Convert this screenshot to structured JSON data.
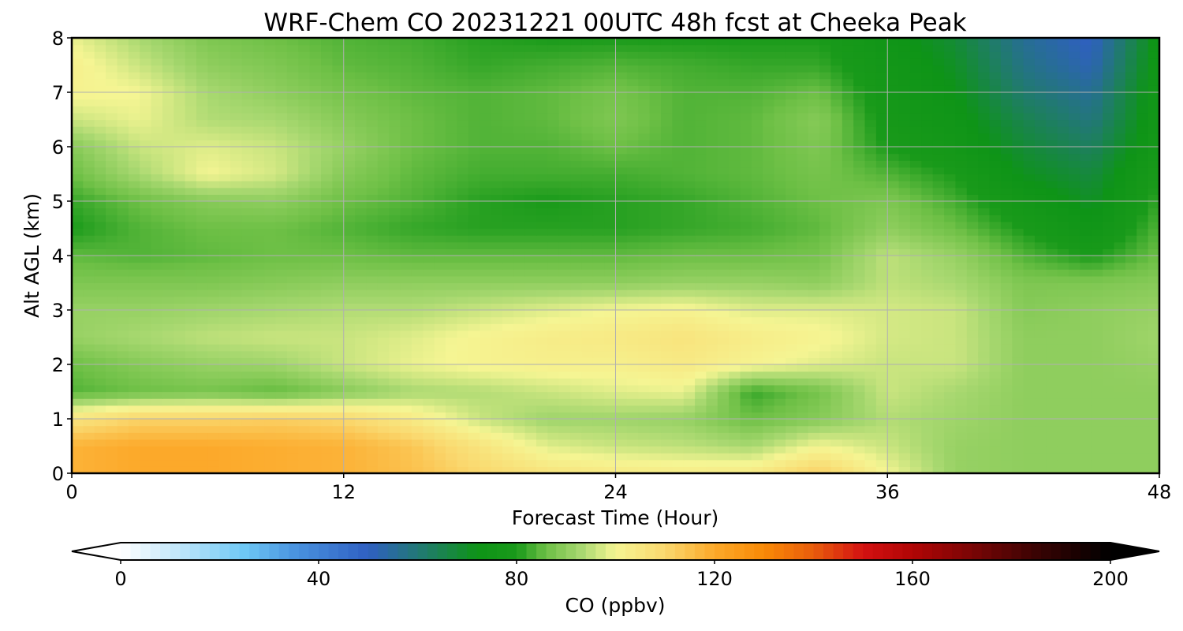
{
  "chart_data": {
    "type": "heatmap",
    "title": "WRF-Chem CO  20231221 00UTC 48h fcst at Cheeka Peak",
    "xlabel": "Forecast Time (Hour)",
    "ylabel": "Alt AGL (km)",
    "xlim": [
      0,
      48
    ],
    "ylim": [
      0,
      8
    ],
    "xticks": [
      0,
      12,
      24,
      36,
      48
    ],
    "yticks": [
      0,
      1,
      2,
      3,
      4,
      5,
      6,
      7,
      8
    ],
    "grid": true,
    "x": [
      0,
      3,
      6,
      9,
      12,
      15,
      18,
      21,
      24,
      27,
      30,
      33,
      36,
      39,
      42,
      45,
      48
    ],
    "y": [
      0,
      0.5,
      1,
      1.5,
      2,
      2.5,
      3,
      3.5,
      4,
      4.5,
      5,
      5.5,
      6,
      6.5,
      7,
      7.5,
      8
    ],
    "z": [
      [
        118,
        120,
        120,
        119,
        118,
        115,
        110,
        106,
        104,
        103,
        104,
        112,
        100,
        91,
        90,
        90,
        90
      ],
      [
        118,
        120,
        120,
        119,
        118,
        114,
        106,
        98,
        96,
        95,
        93,
        100,
        96,
        91,
        90,
        90,
        90
      ],
      [
        106,
        111,
        111,
        112,
        110,
        104,
        96,
        92,
        92,
        91,
        86,
        89,
        94,
        92,
        90,
        90,
        90
      ],
      [
        84,
        86,
        87,
        85,
        89,
        93,
        94,
        96,
        98,
        99,
        82,
        87,
        96,
        93,
        90,
        90,
        90
      ],
      [
        86,
        89,
        91,
        92,
        96,
        99,
        101,
        102,
        102,
        104,
        101,
        98,
        96,
        96,
        90,
        90,
        91
      ],
      [
        91,
        93,
        95,
        96,
        96,
        98,
        101,
        103,
        104,
        106,
        103,
        101,
        97,
        96,
        90,
        90,
        92
      ],
      [
        91,
        91,
        92,
        93,
        94,
        94,
        96,
        98,
        100,
        101,
        98,
        98,
        97,
        96,
        89,
        90,
        91
      ],
      [
        88,
        88,
        88,
        89,
        90,
        90,
        90,
        90,
        90,
        91,
        91,
        90,
        95,
        93,
        88,
        88,
        89
      ],
      [
        85,
        84,
        85,
        86,
        86,
        85,
        85,
        85,
        85,
        86,
        86,
        87,
        95,
        91,
        84,
        80,
        86
      ],
      [
        80,
        84,
        86,
        86,
        84,
        82,
        81,
        81,
        81,
        82,
        83,
        85,
        90,
        86,
        80,
        74,
        84
      ],
      [
        82,
        86,
        89,
        90,
        86,
        84,
        81,
        80,
        81,
        82,
        84,
        86,
        88,
        83,
        76,
        70,
        82
      ],
      [
        86,
        93,
        100,
        97,
        89,
        85,
        83,
        83,
        83,
        84,
        85,
        87,
        84,
        80,
        71,
        67,
        80
      ],
      [
        89,
        96,
        98,
        96,
        91,
        86,
        84,
        84,
        86,
        84,
        85,
        88,
        80,
        76,
        68,
        63,
        77
      ],
      [
        96,
        99,
        94,
        93,
        89,
        86,
        84,
        85,
        88,
        84,
        85,
        89,
        78,
        74,
        65,
        59,
        76
      ],
      [
        101,
        100,
        93,
        90,
        87,
        85,
        84,
        85,
        87,
        84,
        84,
        86,
        77,
        72,
        61,
        56,
        76
      ],
      [
        102,
        96,
        90,
        88,
        85,
        84,
        82,
        83,
        84,
        83,
        82,
        82,
        76,
        70,
        58,
        52,
        75
      ],
      [
        99,
        93,
        88,
        86,
        84,
        83,
        81,
        80,
        80,
        80,
        80,
        80,
        74,
        68,
        56,
        50,
        74
      ]
    ],
    "colorbar": {
      "label": "CO  (ppbv)",
      "min": 0,
      "max": 200,
      "ticks": [
        0,
        40,
        80,
        120,
        160,
        200
      ],
      "extend": "both",
      "stops": [
        {
          "v": 0,
          "c": "#ffffff"
        },
        {
          "v": 12,
          "c": "#bfe6fa"
        },
        {
          "v": 25,
          "c": "#6ec8f5"
        },
        {
          "v": 35,
          "c": "#4a94e0"
        },
        {
          "v": 50,
          "c": "#2f5fc2"
        },
        {
          "v": 62,
          "c": "#1f7d66"
        },
        {
          "v": 72,
          "c": "#0e9417"
        },
        {
          "v": 80,
          "c": "#199a1a"
        },
        {
          "v": 86,
          "c": "#6ec046"
        },
        {
          "v": 93,
          "c": "#a8d870"
        },
        {
          "v": 100,
          "c": "#f5f593"
        },
        {
          "v": 110,
          "c": "#fad86e"
        },
        {
          "v": 120,
          "c": "#fca92a"
        },
        {
          "v": 130,
          "c": "#f98a06"
        },
        {
          "v": 140,
          "c": "#e85c0c"
        },
        {
          "v": 150,
          "c": "#d41111"
        },
        {
          "v": 160,
          "c": "#b00505"
        },
        {
          "v": 172,
          "c": "#7a0505"
        },
        {
          "v": 185,
          "c": "#3a0303"
        },
        {
          "v": 200,
          "c": "#000000"
        }
      ]
    }
  }
}
